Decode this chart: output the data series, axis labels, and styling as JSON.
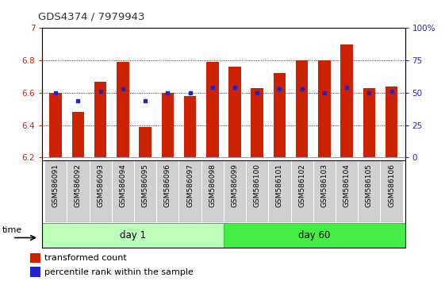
{
  "title": "GDS4374 / 7979943",
  "samples": [
    "GSM586091",
    "GSM586092",
    "GSM586093",
    "GSM586094",
    "GSM586095",
    "GSM586096",
    "GSM586097",
    "GSM586098",
    "GSM586099",
    "GSM586100",
    "GSM586101",
    "GSM586102",
    "GSM586103",
    "GSM586104",
    "GSM586105",
    "GSM586106"
  ],
  "bar_values": [
    6.6,
    6.48,
    6.67,
    6.79,
    6.39,
    6.6,
    6.58,
    6.79,
    6.76,
    6.63,
    6.72,
    6.8,
    6.8,
    6.9,
    6.63,
    6.64
  ],
  "percentile_values": [
    50.0,
    44.0,
    51.0,
    53.0,
    44.0,
    50.0,
    50.0,
    54.0,
    54.0,
    50.0,
    53.0,
    53.0,
    50.0,
    54.0,
    50.0,
    51.0
  ],
  "bar_bottom": 6.2,
  "ylim_left": [
    6.2,
    7.0
  ],
  "ylim_right": [
    0,
    100
  ],
  "yticks_left": [
    6.2,
    6.4,
    6.6,
    6.8,
    7.0
  ],
  "ytick_labels_left": [
    "6.2",
    "6.4",
    "6.6",
    "6.8",
    "7"
  ],
  "yticks_right": [
    0,
    25,
    50,
    75,
    100
  ],
  "ytick_labels_right": [
    "0",
    "25",
    "50",
    "75",
    "100%"
  ],
  "grid_values": [
    6.4,
    6.6,
    6.8
  ],
  "n_day1": 8,
  "n_day60": 8,
  "day1_label": "day 1",
  "day60_label": "day 60",
  "time_label": "time",
  "bar_color": "#cc2200",
  "percentile_color": "#2222cc",
  "day1_color": "#bbffbb",
  "day60_color": "#44ee44",
  "sample_bg_color": "#d0d0d0",
  "legend_bar_label": "transformed count",
  "legend_pct_label": "percentile rank within the sample",
  "bar_width": 0.55,
  "title_color": "#333333",
  "left_tick_color": "#cc2200",
  "right_tick_color": "#2222cc"
}
